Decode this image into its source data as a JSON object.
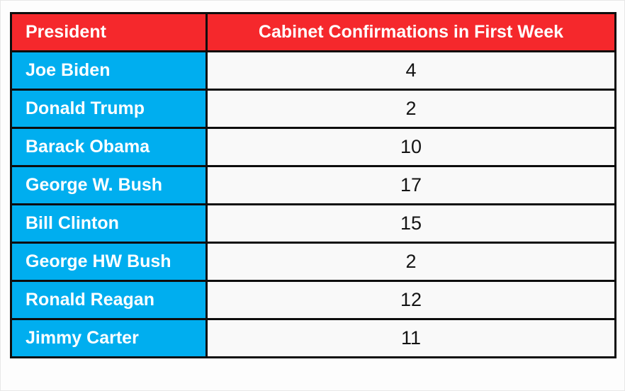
{
  "table": {
    "columns": [
      {
        "label": "President"
      },
      {
        "label": "Cabinet Confirmations in First Week"
      }
    ],
    "rows": [
      {
        "president": "Joe Biden",
        "confirmations": "4"
      },
      {
        "president": "Donald Trump",
        "confirmations": "2"
      },
      {
        "president": "Barack Obama",
        "confirmations": "10"
      },
      {
        "president": "George W. Bush",
        "confirmations": "17"
      },
      {
        "president": "Bill Clinton",
        "confirmations": "15"
      },
      {
        "president": "George HW Bush",
        "confirmations": "2"
      },
      {
        "president": "Ronald Reagan",
        "confirmations": "12"
      },
      {
        "president": "Jimmy Carter",
        "confirmations": "11"
      }
    ]
  },
  "colors": {
    "header_bg": "#f5282c",
    "president_cell_bg": "#00aeef",
    "value_cell_bg": "#f9f9f9",
    "border": "#0d0d0d",
    "header_text": "#ffffff",
    "president_text": "#ffffff",
    "value_text": "#141414"
  },
  "chart_data": {
    "type": "table",
    "title": "Cabinet Confirmations in First Week",
    "columns": [
      "President",
      "Cabinet Confirmations in First Week"
    ],
    "categories": [
      "Joe Biden",
      "Donald Trump",
      "Barack Obama",
      "George W. Bush",
      "Bill Clinton",
      "George HW Bush",
      "Ronald Reagan",
      "Jimmy Carter"
    ],
    "values": [
      4,
      2,
      10,
      17,
      15,
      2,
      12,
      11
    ]
  }
}
